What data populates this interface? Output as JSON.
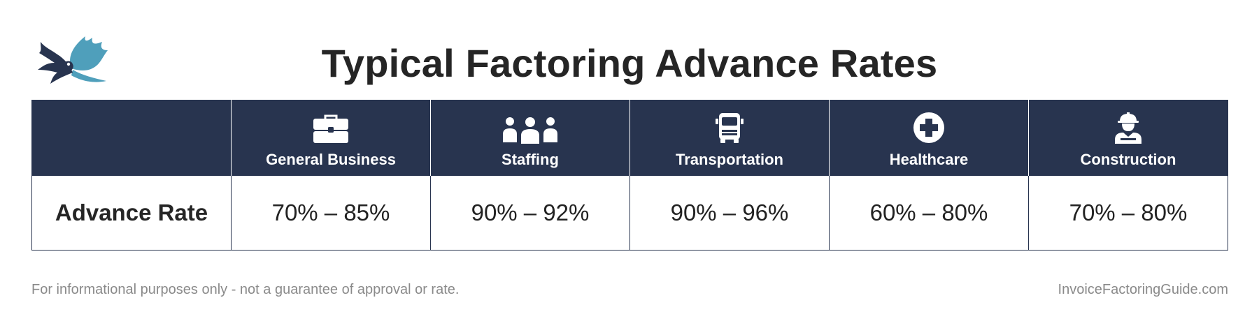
{
  "title": "Typical Factoring Advance Rates",
  "logo": {
    "icon": "eagle-wings-logo",
    "colors": {
      "dark": "#28344f",
      "teal": "#4f9fbb"
    }
  },
  "table": {
    "row_label": "Advance Rate",
    "columns": [
      {
        "label": "General Business",
        "icon": "briefcase-icon",
        "rate": "70% – 85%"
      },
      {
        "label": "Staffing",
        "icon": "people-icon",
        "rate": "90% – 92%"
      },
      {
        "label": "Transportation",
        "icon": "truck-icon",
        "rate": "90% – 96%"
      },
      {
        "label": "Healthcare",
        "icon": "medical-cross-icon",
        "rate": "60% – 80%"
      },
      {
        "label": "Construction",
        "icon": "construction-worker-icon",
        "rate": "70% – 80%"
      }
    ]
  },
  "footer": {
    "disclaimer": "For informational purposes only - not a guarantee of approval or rate.",
    "site": "InvoiceFactoringGuide.com"
  },
  "colors": {
    "header_bg": "#28344f",
    "text": "#252525",
    "muted": "#8a8a8a"
  }
}
